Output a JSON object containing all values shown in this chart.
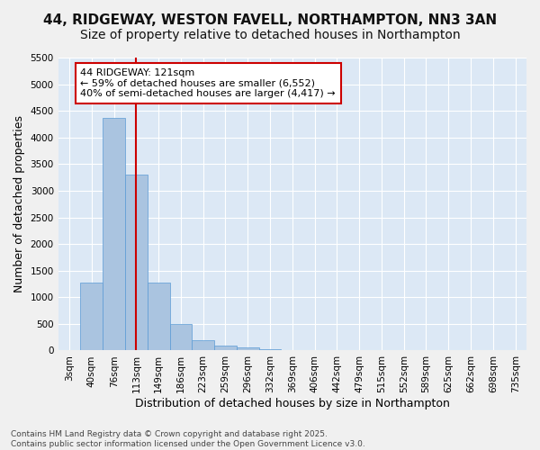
{
  "title_line1": "44, RIDGEWAY, WESTON FAVELL, NORTHAMPTON, NN3 3AN",
  "title_line2": "Size of property relative to detached houses in Northampton",
  "xlabel": "Distribution of detached houses by size in Northampton",
  "ylabel": "Number of detached properties",
  "bar_values": [
    0,
    1270,
    4370,
    3310,
    1280,
    500,
    200,
    90,
    60,
    30,
    10,
    0,
    0,
    0,
    0,
    0,
    0,
    0,
    0,
    0,
    0
  ],
  "x_labels": [
    "3sqm",
    "40sqm",
    "76sqm",
    "113sqm",
    "149sqm",
    "186sqm",
    "223sqm",
    "259sqm",
    "296sqm",
    "332sqm",
    "369sqm",
    "406sqm",
    "442sqm",
    "479sqm",
    "515sqm",
    "552sqm",
    "589sqm",
    "625sqm",
    "662sqm",
    "698sqm",
    "735sqm"
  ],
  "bar_color": "#aac4e0",
  "bar_edge_color": "#5b9bd5",
  "vline_x": 3,
  "vline_color": "#cc0000",
  "annotation_text": "44 RIDGEWAY: 121sqm\n← 59% of detached houses are smaller (6,552)\n40% of semi-detached houses are larger (4,417) →",
  "annotation_box_color": "#ffffff",
  "annotation_box_edge": "#cc0000",
  "ylim": [
    0,
    5500
  ],
  "yticks": [
    0,
    500,
    1000,
    1500,
    2000,
    2500,
    3000,
    3500,
    4000,
    4500,
    5000,
    5500
  ],
  "background_color": "#dce8f5",
  "grid_color": "#ffffff",
  "footnote": "Contains HM Land Registry data © Crown copyright and database right 2025.\nContains public sector information licensed under the Open Government Licence v3.0.",
  "title_fontsize": 11,
  "subtitle_fontsize": 10,
  "axis_label_fontsize": 9,
  "tick_fontsize": 7.5,
  "annotation_fontsize": 8,
  "footnote_fontsize": 6.5,
  "fig_bg_color": "#f0f0f0"
}
